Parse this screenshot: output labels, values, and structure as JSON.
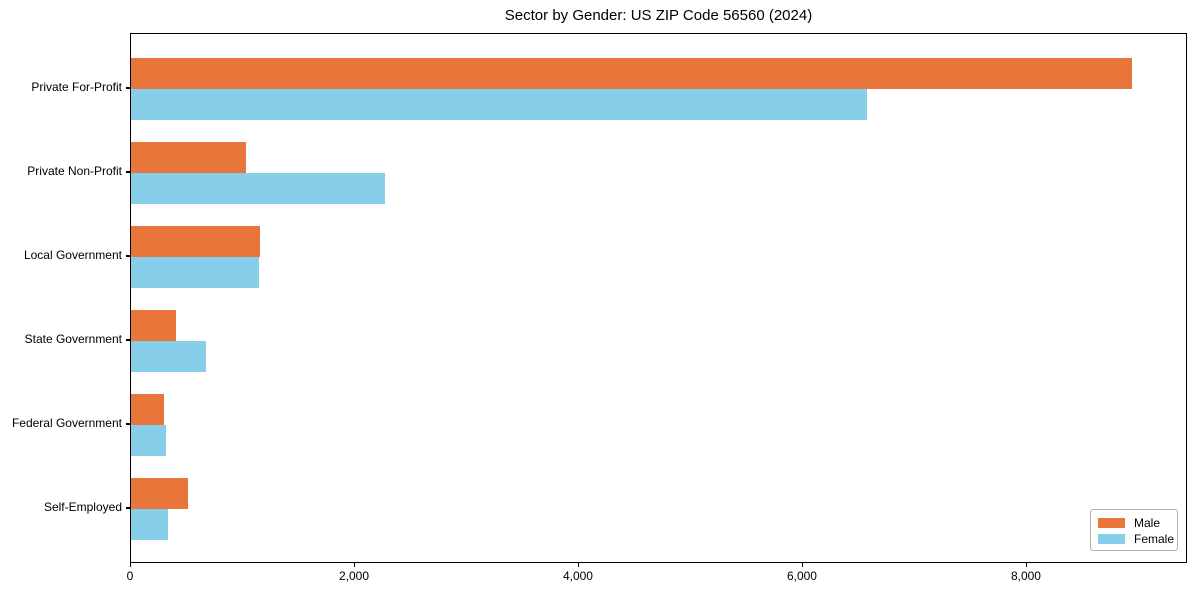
{
  "chart_data": {
    "type": "bar",
    "orientation": "horizontal",
    "title": "Sector by Gender: US ZIP Code 56560 (2024)",
    "categories": [
      "Private For-Profit",
      "Private Non-Profit",
      "Local Government",
      "State Government",
      "Federal Government",
      "Self-Employed"
    ],
    "series": [
      {
        "name": "Male",
        "color": "#E8763B",
        "values": [
          8940,
          1025,
          1150,
          400,
          295,
          510
        ]
      },
      {
        "name": "Female",
        "color": "#87CEEB",
        "values": [
          6570,
          2270,
          1140,
          670,
          310,
          330
        ]
      }
    ],
    "xlabel": "",
    "ylabel": "",
    "xlim": [
      0,
      9420
    ],
    "xticks": [
      0,
      2000,
      4000,
      6000,
      8000
    ],
    "xtick_labels": [
      "0",
      "2,000",
      "4,000",
      "6,000",
      "8,000"
    ],
    "grid": false,
    "legend_position": "lower right",
    "background_color": "#ffffff",
    "axis_color": "#000000"
  }
}
